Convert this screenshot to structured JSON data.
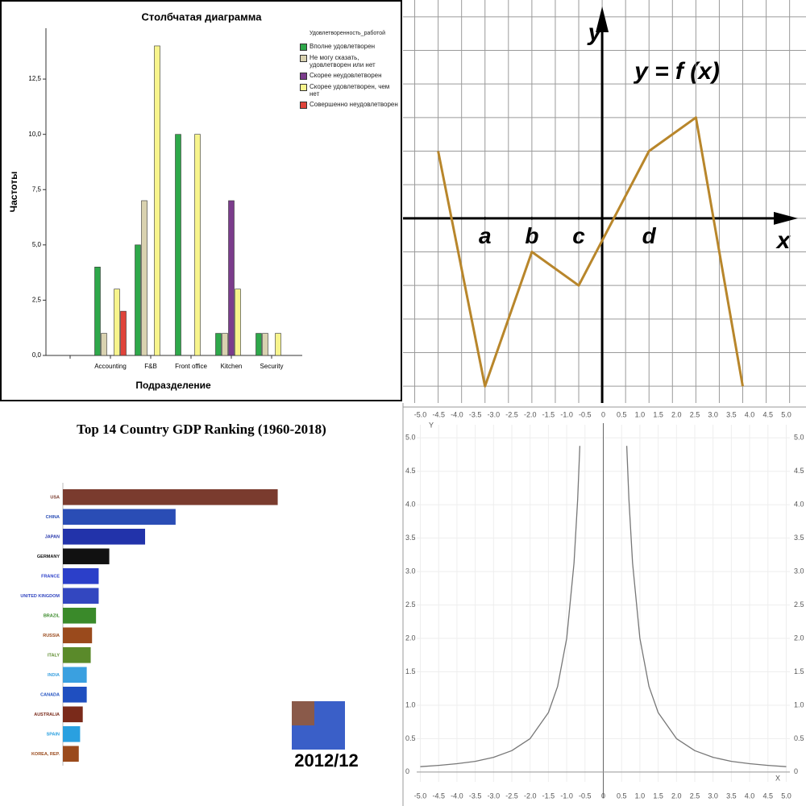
{
  "chart_data": [
    {
      "type": "bar",
      "title": "Столбчатая диаграмма",
      "xlabel": "Подразделение",
      "ylabel": "Частоты",
      "legend_title": "Удовлетворенность_работой",
      "legend": "right",
      "categories": [
        null,
        "Accounting",
        "F&B",
        "Front office",
        "Kitchen",
        "Security"
      ],
      "series": [
        {
          "name": "Вполне удовлетворен",
          "color": "#2ea84a",
          "values": [
            null,
            4,
            5,
            10,
            1,
            1
          ]
        },
        {
          "name": "Не могу сказать, удовлетворен или нет",
          "color": "#d9d2b0",
          "values": [
            null,
            1,
            7,
            null,
            1,
            1
          ]
        },
        {
          "name": "Скорее неудовлетворен",
          "color": "#7b3c8c",
          "values": [
            null,
            null,
            null,
            null,
            7,
            null
          ]
        },
        {
          "name": "Скорее удовлетворен, чем нет",
          "color": "#f7f48c",
          "values": [
            null,
            3,
            14,
            10,
            3,
            1
          ]
        },
        {
          "name": "Совершенно неудовлетворен",
          "color": "#e0433a",
          "values": [
            null,
            2,
            null,
            null,
            null,
            null
          ]
        }
      ],
      "ylim": [
        0,
        14.8
      ],
      "yticks": [
        {
          "value": 0,
          "label": "0,0"
        },
        {
          "value": 2.5,
          "label": "2,5"
        },
        {
          "value": 5,
          "label": "5,0"
        },
        {
          "value": 7.5,
          "label": "7,5"
        },
        {
          "value": 10,
          "label": "10,0"
        },
        {
          "value": 12.5,
          "label": "12,5"
        }
      ]
    },
    {
      "type": "line",
      "title": "y = f (x)",
      "xlabel": "x",
      "ylabel": "y",
      "x": [
        -7,
        -5,
        -3,
        -1,
        2,
        4,
        6
      ],
      "series": [
        {
          "color": "#b8862b",
          "values": [
            2,
            -5,
            -1,
            -2,
            2,
            3,
            -5
          ]
        }
      ],
      "xlim": [
        -8.5,
        8.7
      ],
      "ylim": [
        -5.5,
        6.5
      ],
      "xticks": [
        {
          "value": -5,
          "label": "a"
        },
        {
          "value": -3,
          "label": "b"
        },
        {
          "value": -1,
          "label": "c"
        },
        {
          "value": 2,
          "label": "d"
        }
      ],
      "grid": true
    },
    {
      "type": "bar",
      "orientation": "horizontal",
      "title": "Top 14 Country GDP Ranking (1960-2018)",
      "annotation": "2012/12",
      "categories": [
        "USA",
        "CHINA",
        "JAPAN",
        "GERMANY",
        "FRANCE",
        "UNITED KINGDOM",
        "BRAZIL",
        "RUSSIA",
        "ITALY",
        "INDIA",
        "CANADA",
        "AUSTRALIA",
        "SPAIN",
        "KOREA, REP."
      ],
      "values": [
        16.2,
        8.5,
        6.2,
        3.5,
        2.7,
        2.7,
        2.5,
        2.2,
        2.1,
        1.8,
        1.8,
        1.5,
        1.3,
        1.2
      ],
      "colors": [
        "#7a3b2e",
        "#2a4db5",
        "#2233aa",
        "#111111",
        "#2b3fc9",
        "#3347c0",
        "#3a8a2a",
        "#9a4a1c",
        "#5a8a2a",
        "#3aa0e0",
        "#1f4fc0",
        "#7a2a1a",
        "#2aa0e0",
        "#9a4a1c"
      ],
      "xlim": [
        0,
        22
      ]
    },
    {
      "type": "line",
      "xlabel": "X",
      "ylabel": "Y",
      "x": [
        -5,
        -4.5,
        -4,
        -3.5,
        -3,
        -2.5,
        -2,
        -1.5,
        -1.25,
        -1,
        -0.8,
        -0.7,
        -0.64,
        0,
        0.64,
        0.7,
        0.8,
        1,
        1.25,
        1.5,
        2,
        2.5,
        3,
        3.5,
        4,
        4.5,
        5
      ],
      "series": [
        {
          "color": "#777777",
          "values": [
            0.08,
            0.1,
            0.125,
            0.16,
            0.22,
            0.32,
            0.5,
            0.89,
            1.28,
            2,
            3.13,
            4.08,
            4.88,
            null,
            4.88,
            4.08,
            3.13,
            2,
            1.28,
            0.89,
            0.5,
            0.32,
            0.22,
            0.16,
            0.125,
            0.1,
            0.08
          ]
        }
      ],
      "xlim": [
        -5.1,
        5.1
      ],
      "ylim": [
        -0.05,
        5.1
      ],
      "xticks": [
        {
          "value": -5,
          "label": "-5.0"
        },
        -4.5,
        {
          "value": -4,
          "label": "-4.0"
        },
        -3.5,
        {
          "value": -3,
          "label": "-3.0"
        },
        -2.5,
        {
          "value": -2,
          "label": "-2.0"
        },
        -1.5,
        {
          "value": -1,
          "label": "-1.0"
        },
        -0.5,
        0,
        0.5,
        {
          "value": 1,
          "label": "1.0"
        },
        1.5,
        {
          "value": 2,
          "label": "2.0"
        },
        2.5,
        {
          "value": 3,
          "label": "3.0"
        },
        3.5,
        {
          "value": 4,
          "label": "4.0"
        },
        4.5,
        {
          "value": 5,
          "label": "5.0"
        }
      ],
      "yticks": [
        0,
        0.5,
        {
          "value": 1,
          "label": "1.0"
        },
        1.5,
        {
          "value": 2,
          "label": "2.0"
        },
        2.5,
        {
          "value": 3,
          "label": "3.0"
        },
        3.5,
        {
          "value": 4,
          "label": "4.0"
        },
        4.5,
        {
          "value": 5,
          "label": "5.0"
        }
      ],
      "grid": true
    }
  ]
}
